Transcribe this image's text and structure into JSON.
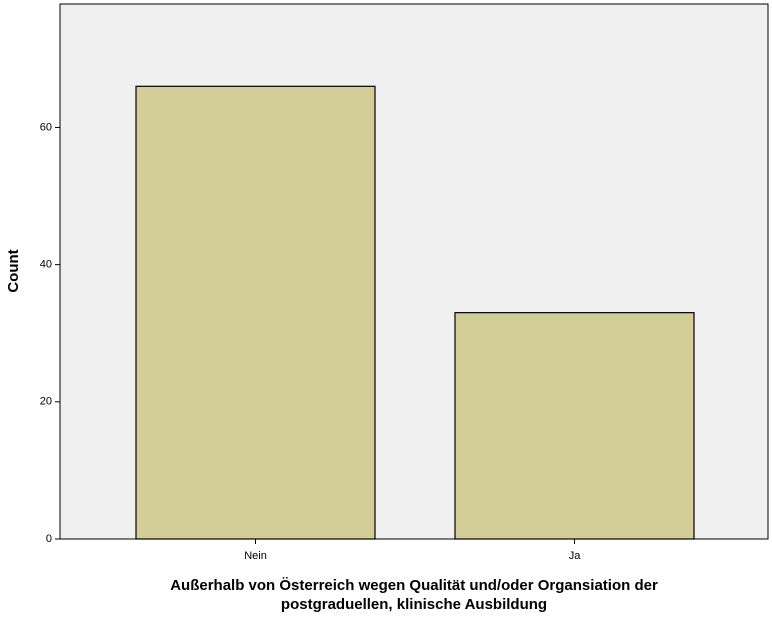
{
  "chart_data": {
    "type": "bar",
    "categories": [
      "Nein",
      "Ja"
    ],
    "values": [
      66,
      33
    ],
    "color": "#d3ce97",
    "ylabel": "Count",
    "xlabel": [
      "Außerhalb von Österreich wegen Qualität und/oder Organsiation der",
      "postgraduellen, klinische Ausbildung"
    ],
    "ylim": [
      0,
      78
    ],
    "yticks": [
      0,
      20,
      40,
      60
    ],
    "grid": false
  }
}
